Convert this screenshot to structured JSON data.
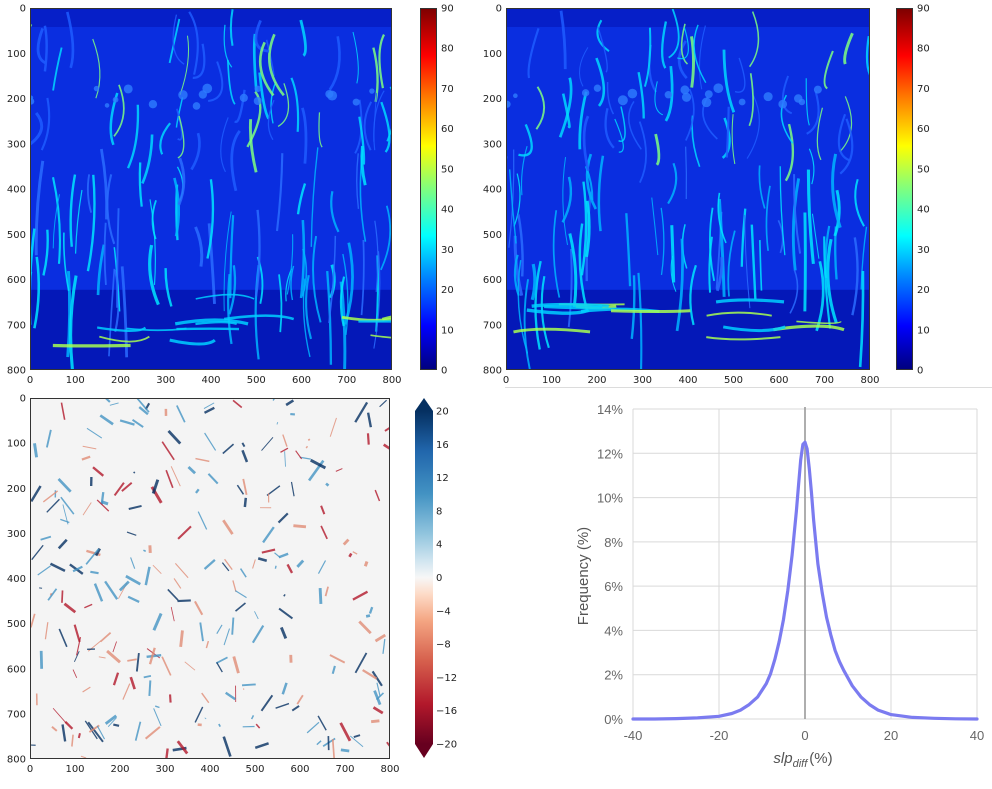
{
  "panels": {
    "p1": {
      "x_ticks": [
        "0",
        "100",
        "200",
        "300",
        "400",
        "500",
        "600",
        "700",
        "800"
      ],
      "y_ticks": [
        "0",
        "100",
        "200",
        "300",
        "400",
        "500",
        "600",
        "700",
        "800"
      ],
      "colorbar_ticks": [
        "0",
        "10",
        "20",
        "30",
        "40",
        "50",
        "60",
        "70",
        "80",
        "90"
      ],
      "colormap": "jet",
      "colorbar_range": [
        0,
        90
      ]
    },
    "p2": {
      "x_ticks": [
        "0",
        "100",
        "200",
        "300",
        "400",
        "500",
        "600",
        "700",
        "800"
      ],
      "y_ticks": [
        "0",
        "100",
        "200",
        "300",
        "400",
        "500",
        "600",
        "700",
        "800"
      ],
      "colorbar_ticks": [
        "0",
        "10",
        "20",
        "30",
        "40",
        "50",
        "60",
        "70",
        "80",
        "90"
      ],
      "colormap": "jet",
      "colorbar_range": [
        0,
        90
      ]
    },
    "p3": {
      "x_ticks": [
        "0",
        "100",
        "200",
        "300",
        "400",
        "500",
        "600",
        "700",
        "800"
      ],
      "y_ticks": [
        "0",
        "100",
        "200",
        "300",
        "400",
        "500",
        "600",
        "700",
        "800"
      ],
      "colorbar_ticks": [
        "−20",
        "−16",
        "−12",
        "−8",
        "−4",
        "0",
        "4",
        "8",
        "12",
        "16",
        "20"
      ],
      "colormap": "RdBu",
      "colorbar_range": [
        -20,
        20
      ]
    }
  },
  "colors": {
    "line": "#7b7bf0",
    "zero_line": "#9a9a9a",
    "grid": "#d9d9d9",
    "tick_text": "#666666"
  },
  "chart_data": [
    {
      "type": "heatmap",
      "colormap": "jet",
      "xlim": [
        0,
        800
      ],
      "ylim": [
        800,
        0
      ],
      "x_ticks": [
        0,
        100,
        200,
        300,
        400,
        500,
        600,
        700,
        800
      ],
      "y_ticks": [
        0,
        100,
        200,
        300,
        400,
        500,
        600,
        700,
        800
      ],
      "colorbar_range": [
        0,
        90
      ],
      "colorbar_ticks": [
        0,
        10,
        20,
        30,
        40,
        50,
        60,
        70,
        80,
        90
      ]
    },
    {
      "type": "heatmap",
      "colormap": "jet",
      "xlim": [
        0,
        800
      ],
      "ylim": [
        800,
        0
      ],
      "x_ticks": [
        0,
        100,
        200,
        300,
        400,
        500,
        600,
        700,
        800
      ],
      "y_ticks": [
        0,
        100,
        200,
        300,
        400,
        500,
        600,
        700,
        800
      ],
      "colorbar_range": [
        0,
        90
      ],
      "colorbar_ticks": [
        0,
        10,
        20,
        30,
        40,
        50,
        60,
        70,
        80,
        90
      ]
    },
    {
      "type": "heatmap",
      "colormap": "RdBu",
      "xlim": [
        0,
        800
      ],
      "ylim": [
        800,
        0
      ],
      "x_ticks": [
        0,
        100,
        200,
        300,
        400,
        500,
        600,
        700,
        800
      ],
      "y_ticks": [
        0,
        100,
        200,
        300,
        400,
        500,
        600,
        700,
        800
      ],
      "colorbar_range": [
        -20,
        20
      ],
      "colorbar_ticks": [
        -20,
        -16,
        -12,
        -8,
        -4,
        0,
        4,
        8,
        12,
        16,
        20
      ]
    },
    {
      "type": "line",
      "xlabel_main": "slp",
      "xlabel_sub": "diff",
      "xlabel_unit": "(%)",
      "ylabel": "Frequency (%)",
      "xlim": [
        -40,
        40
      ],
      "ylim": [
        0,
        14
      ],
      "x_ticks": [
        "-40",
        "-20",
        "0",
        "20",
        "40"
      ],
      "x_tick_values": [
        -40,
        -20,
        0,
        20,
        40
      ],
      "y_ticks": [
        "0%",
        "2%",
        "4%",
        "6%",
        "8%",
        "10%",
        "12%",
        "14%"
      ],
      "y_tick_values": [
        0,
        2,
        4,
        6,
        8,
        10,
        12,
        14
      ],
      "grid": true,
      "series": [
        {
          "x": [
            -40,
            -35,
            -30,
            -25,
            -20,
            -17,
            -15,
            -13,
            -11,
            -9,
            -8,
            -7,
            -6,
            -5,
            -4,
            -3,
            -2,
            -1.5,
            -1,
            -0.5,
            0,
            0.5,
            1,
            1.5,
            2,
            3,
            4,
            5,
            6,
            7,
            8,
            9,
            11,
            13,
            15,
            17,
            20,
            25,
            30,
            35,
            40
          ],
          "y": [
            0,
            0,
            0.02,
            0.05,
            0.12,
            0.25,
            0.4,
            0.65,
            1.0,
            1.6,
            2.05,
            2.7,
            3.5,
            4.5,
            5.8,
            7.4,
            9.4,
            10.6,
            11.7,
            12.4,
            12.5,
            12.2,
            11.3,
            10.2,
            9.0,
            7.0,
            5.7,
            4.6,
            3.8,
            3.1,
            2.6,
            2.2,
            1.5,
            1.0,
            0.65,
            0.4,
            0.2,
            0.07,
            0.03,
            0.01,
            0
          ]
        }
      ]
    }
  ]
}
